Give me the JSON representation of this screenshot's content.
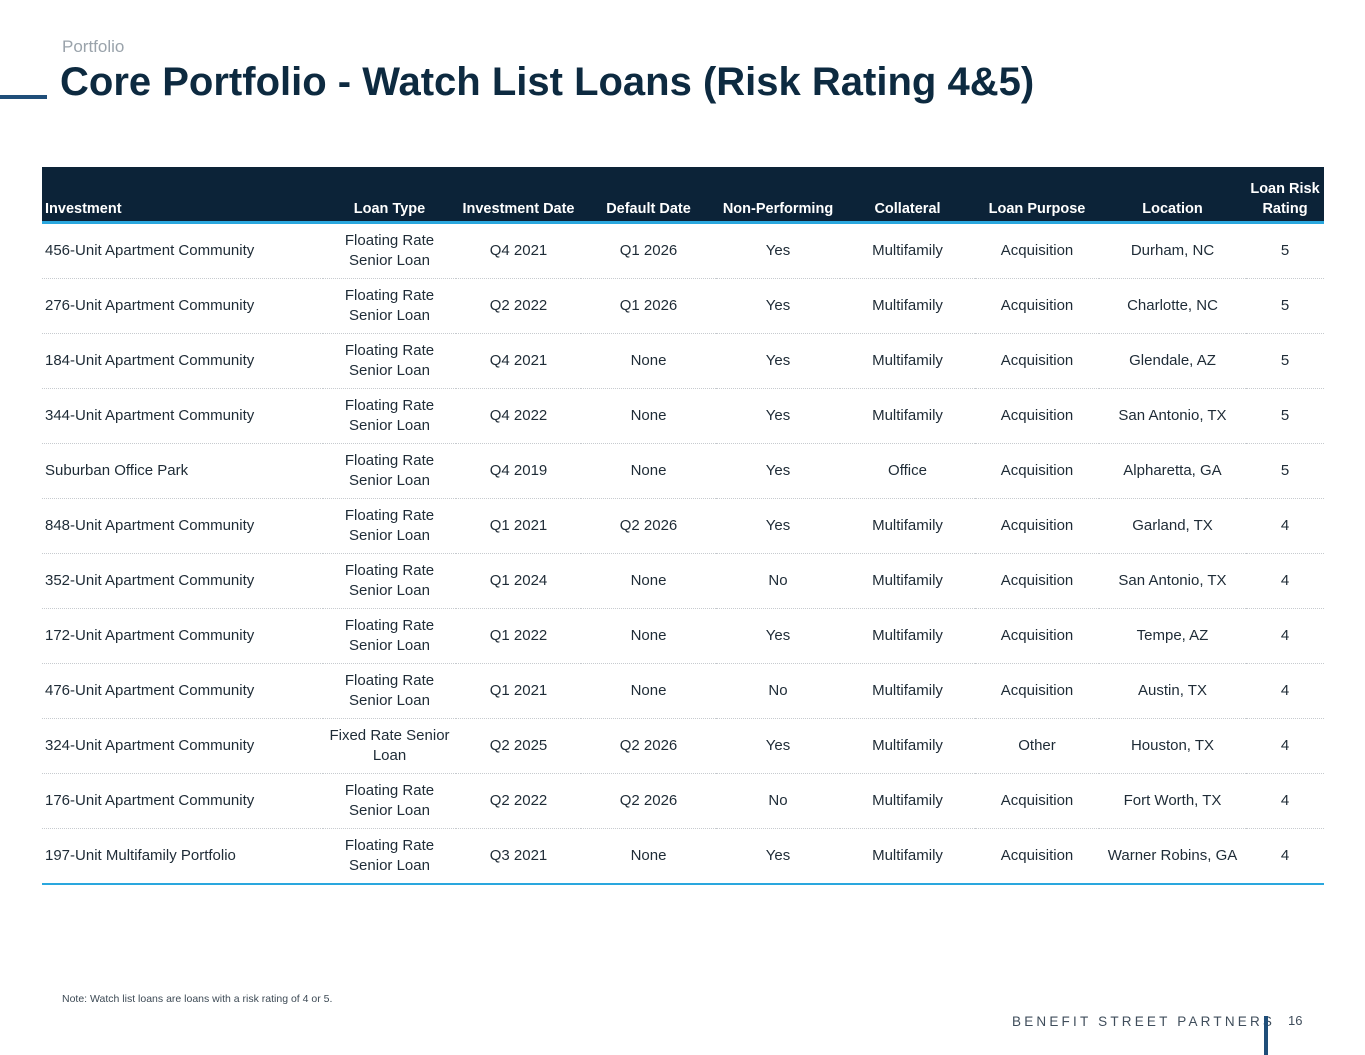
{
  "header": {
    "section": "Portfolio",
    "title": "Core Portfolio - Watch List Loans (Risk Rating 4&5)"
  },
  "table": {
    "columns": [
      "Investment",
      "Loan Type",
      "Investment Date",
      "Default Date",
      "Non-Performing",
      "Collateral",
      "Loan Purpose",
      "Location",
      "Loan Risk Rating"
    ],
    "rows": [
      [
        "456-Unit Apartment Community",
        "Floating Rate Senior Loan",
        "Q4 2021",
        "Q1 2026",
        "Yes",
        "Multifamily",
        "Acquisition",
        "Durham, NC",
        "5"
      ],
      [
        "276-Unit Apartment Community",
        "Floating Rate Senior Loan",
        "Q2 2022",
        "Q1 2026",
        "Yes",
        "Multifamily",
        "Acquisition",
        "Charlotte, NC",
        "5"
      ],
      [
        "184-Unit Apartment Community",
        "Floating Rate Senior Loan",
        "Q4 2021",
        "None",
        "Yes",
        "Multifamily",
        "Acquisition",
        "Glendale, AZ",
        "5"
      ],
      [
        "344-Unit Apartment Community",
        "Floating Rate Senior Loan",
        "Q4 2022",
        "None",
        "Yes",
        "Multifamily",
        "Acquisition",
        "San Antonio, TX",
        "5"
      ],
      [
        "Suburban Office Park",
        "Floating Rate Senior Loan",
        "Q4 2019",
        "None",
        "Yes",
        "Office",
        "Acquisition",
        "Alpharetta, GA",
        "5"
      ],
      [
        "848-Unit Apartment Community",
        "Floating Rate Senior Loan",
        "Q1 2021",
        "Q2 2026",
        "Yes",
        "Multifamily",
        "Acquisition",
        "Garland, TX",
        "4"
      ],
      [
        "352-Unit Apartment Community",
        "Floating Rate Senior Loan",
        "Q1 2024",
        "None",
        "No",
        "Multifamily",
        "Acquisition",
        "San Antonio, TX",
        "4"
      ],
      [
        "172-Unit Apartment Community",
        "Floating Rate Senior Loan",
        "Q1 2022",
        "None",
        "Yes",
        "Multifamily",
        "Acquisition",
        "Tempe, AZ",
        "4"
      ],
      [
        "476-Unit Apartment Community",
        "Floating Rate Senior Loan",
        "Q1 2021",
        "None",
        "No",
        "Multifamily",
        "Acquisition",
        "Austin, TX",
        "4"
      ],
      [
        "324-Unit Apartment Community",
        "Fixed Rate Senior Loan",
        "Q2 2025",
        "Q2 2026",
        "Yes",
        "Multifamily",
        "Other",
        "Houston, TX",
        "4"
      ],
      [
        "176-Unit Apartment Community",
        "Floating Rate Senior Loan",
        "Q2 2022",
        "Q2 2026",
        "No",
        "Multifamily",
        "Acquisition",
        "Fort Worth, TX",
        "4"
      ],
      [
        "197-Unit Multifamily Portfolio",
        "Floating Rate Senior Loan",
        "Q3 2021",
        "None",
        "Yes",
        "Multifamily",
        "Acquisition",
        "Warner Robins, GA",
        "4"
      ]
    ]
  },
  "footer": {
    "note": "Note: Watch list loans are loans with a risk rating of 4 or 5.",
    "brand": "BENEFIT STREET PARTNERS",
    "page_number": "16"
  },
  "colors": {
    "header_bg": "#0c2338",
    "accent": "#2aa7de",
    "title": "#0d2a40"
  }
}
